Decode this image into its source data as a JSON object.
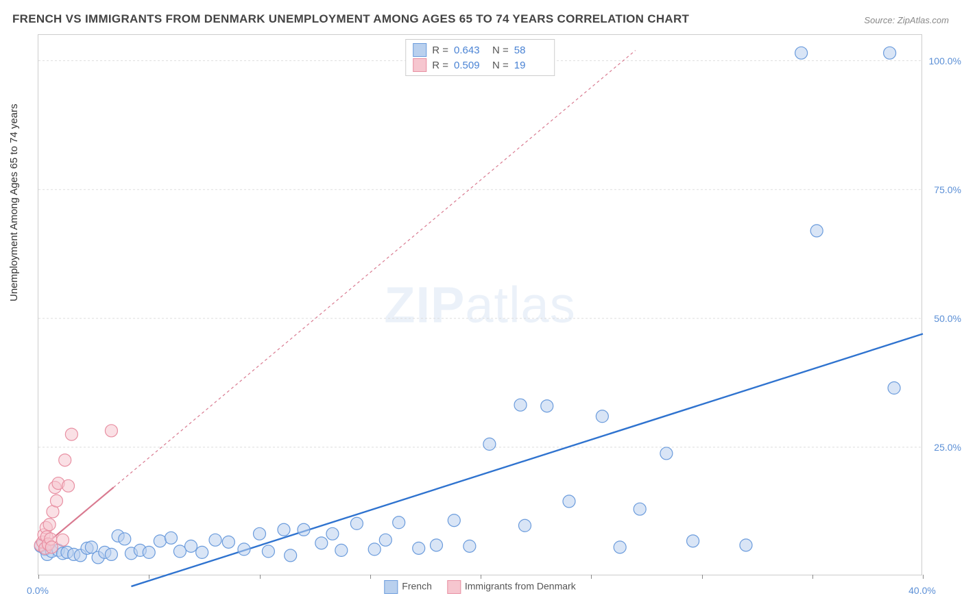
{
  "title": "FRENCH VS IMMIGRANTS FROM DENMARK UNEMPLOYMENT AMONG AGES 65 TO 74 YEARS CORRELATION CHART",
  "source": {
    "label": "Source:",
    "value": "ZipAtlas.com"
  },
  "ylabel": "Unemployment Among Ages 65 to 74 years",
  "watermark": {
    "bold": "ZIP",
    "light": "atlas"
  },
  "chart": {
    "type": "scatter",
    "xlim": [
      0,
      40
    ],
    "ylim": [
      0,
      105
    ],
    "xticks": [
      0,
      5,
      10,
      15,
      20,
      25,
      30,
      35,
      40
    ],
    "xtick_labels_shown": {
      "0": "0.0%",
      "40": "40.0%"
    },
    "yticks": [
      25,
      50,
      75,
      100
    ],
    "ytick_labels": [
      "25.0%",
      "50.0%",
      "75.0%",
      "100.0%"
    ],
    "background_color": "#ffffff",
    "grid_color": "#dddddd",
    "marker_radius": 9,
    "marker_stroke_width": 1.2,
    "series": [
      {
        "name": "French",
        "color_fill": "#b9d0ee",
        "color_stroke": "#6a9bdc",
        "fill_opacity": 0.55,
        "regression": {
          "x1": 4.2,
          "y1": -2,
          "x2": 40,
          "y2": 47,
          "dash": "none",
          "width": 2.4,
          "color": "#2f73cf"
        },
        "R": "0.643",
        "N": "58",
        "points": [
          [
            0.1,
            5.8
          ],
          [
            0.3,
            5.2
          ],
          [
            0.4,
            4.2
          ],
          [
            0.6,
            4.8
          ],
          [
            0.9,
            5.0
          ],
          [
            1.1,
            4.4
          ],
          [
            1.3,
            4.6
          ],
          [
            1.6,
            4.2
          ],
          [
            1.9,
            4.0
          ],
          [
            2.2,
            5.4
          ],
          [
            2.4,
            5.6
          ],
          [
            2.7,
            3.6
          ],
          [
            3.0,
            4.6
          ],
          [
            3.3,
            4.2
          ],
          [
            3.6,
            7.8
          ],
          [
            3.9,
            7.2
          ],
          [
            4.2,
            4.4
          ],
          [
            4.6,
            5.0
          ],
          [
            5.0,
            4.6
          ],
          [
            5.5,
            6.8
          ],
          [
            6.0,
            7.4
          ],
          [
            6.4,
            4.8
          ],
          [
            6.9,
            5.8
          ],
          [
            7.4,
            4.6
          ],
          [
            8.0,
            7.0
          ],
          [
            8.6,
            6.6
          ],
          [
            9.3,
            5.2
          ],
          [
            10.0,
            8.2
          ],
          [
            10.4,
            4.8
          ],
          [
            11.1,
            9.0
          ],
          [
            11.4,
            4.0
          ],
          [
            12.0,
            9.0
          ],
          [
            12.8,
            6.4
          ],
          [
            13.3,
            8.2
          ],
          [
            13.7,
            5.0
          ],
          [
            14.4,
            10.2
          ],
          [
            15.2,
            5.2
          ],
          [
            15.7,
            7.0
          ],
          [
            16.3,
            10.4
          ],
          [
            17.2,
            5.4
          ],
          [
            18.0,
            6.0
          ],
          [
            18.8,
            10.8
          ],
          [
            19.5,
            5.8
          ],
          [
            20.4,
            25.6
          ],
          [
            21.8,
            33.2
          ],
          [
            22.0,
            9.8
          ],
          [
            23.0,
            33.0
          ],
          [
            24.0,
            14.5
          ],
          [
            25.5,
            31.0
          ],
          [
            26.3,
            5.6
          ],
          [
            27.2,
            13.0
          ],
          [
            28.4,
            23.8
          ],
          [
            29.6,
            6.8
          ],
          [
            32.0,
            6.0
          ],
          [
            34.5,
            101.5
          ],
          [
            35.2,
            67.0
          ],
          [
            38.5,
            101.5
          ],
          [
            38.7,
            36.5
          ]
        ]
      },
      {
        "name": "Immigrants from Denmark",
        "color_fill": "#f6c6cf",
        "color_stroke": "#e88fa2",
        "fill_opacity": 0.55,
        "regression": {
          "x1": 0,
          "y1": 5,
          "x2": 27,
          "y2": 102,
          "dash": "4 4",
          "width": 1.2,
          "color": "#d97a90",
          "solid_until_x": 3.4
        },
        "R": "0.509",
        "N": "19",
        "points": [
          [
            0.1,
            6.0
          ],
          [
            0.2,
            6.6
          ],
          [
            0.25,
            8.0
          ],
          [
            0.3,
            5.4
          ],
          [
            0.35,
            9.4
          ],
          [
            0.38,
            7.6
          ],
          [
            0.45,
            6.2
          ],
          [
            0.5,
            10.0
          ],
          [
            0.55,
            7.2
          ],
          [
            0.6,
            5.6
          ],
          [
            0.65,
            12.5
          ],
          [
            0.75,
            17.2
          ],
          [
            0.82,
            14.6
          ],
          [
            0.9,
            18.0
          ],
          [
            1.1,
            7.0
          ],
          [
            1.2,
            22.5
          ],
          [
            1.35,
            17.5
          ],
          [
            1.5,
            27.5
          ],
          [
            3.3,
            28.2
          ]
        ]
      }
    ]
  },
  "legend_top": [
    {
      "swatch_fill": "#b9d0ee",
      "swatch_stroke": "#6a9bdc",
      "R_label": "R =",
      "R": "0.643",
      "N_label": "N =",
      "N": "58"
    },
    {
      "swatch_fill": "#f6c6cf",
      "swatch_stroke": "#e88fa2",
      "R_label": "R =",
      "R": "0.509",
      "N_label": "N =",
      "N": "19"
    }
  ],
  "legend_bottom": [
    {
      "swatch_fill": "#b9d0ee",
      "swatch_stroke": "#6a9bdc",
      "label": "French"
    },
    {
      "swatch_fill": "#f6c6cf",
      "swatch_stroke": "#e88fa2",
      "label": "Immigrants from Denmark"
    }
  ]
}
